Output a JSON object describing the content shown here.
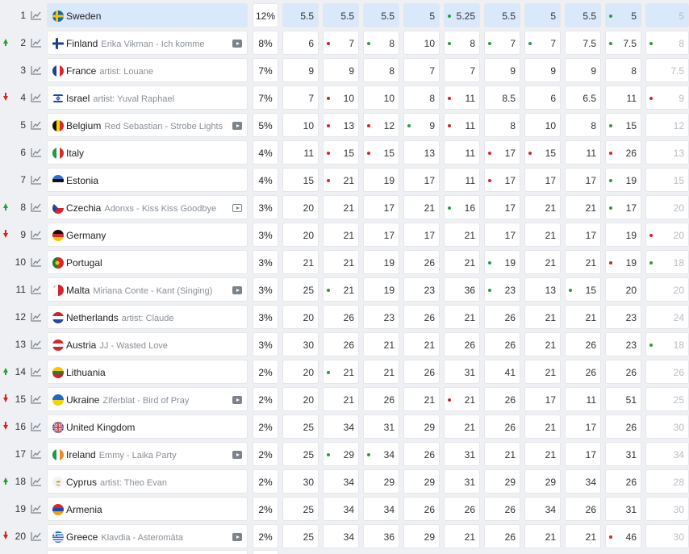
{
  "colors": {
    "up": "#2a9d3a",
    "down": "#d42626",
    "highlight": "#d9e8fb"
  },
  "rows": [
    {
      "rank": "1",
      "move": "",
      "country": "Sweden",
      "sub": "",
      "flag": "se",
      "video": "",
      "pct": "12%",
      "vals": [
        "5.5",
        "5.5",
        "5.5",
        "5",
        "5.25",
        "5.5",
        "5",
        "5.5",
        "5",
        "5"
      ],
      "dots": [
        "",
        "",
        "",
        "",
        "g",
        "",
        "",
        "",
        "g",
        ""
      ]
    },
    {
      "rank": "2",
      "move": "up",
      "country": "Finland",
      "sub": "Erika Vikman - Ich komme",
      "flag": "fi",
      "video": "filled",
      "pct": "8%",
      "vals": [
        "6",
        "7",
        "8",
        "10",
        "8",
        "7",
        "7",
        "7.5",
        "7.5",
        "8"
      ],
      "dots": [
        "",
        "r",
        "g",
        "",
        "g",
        "g",
        "g",
        "",
        "g",
        "g"
      ]
    },
    {
      "rank": "3",
      "move": "",
      "country": "France",
      "sub": "artist: Louane",
      "flag": "fr",
      "video": "",
      "pct": "7%",
      "vals": [
        "9",
        "9",
        "8",
        "7",
        "7",
        "9",
        "9",
        "9",
        "8",
        "7.5"
      ],
      "dots": [
        "",
        "",
        "",
        "",
        "",
        "",
        "",
        "",
        "",
        ""
      ]
    },
    {
      "rank": "4",
      "move": "down",
      "country": "Israel",
      "sub": "artist: Yuval Raphael",
      "flag": "il",
      "video": "",
      "pct": "7%",
      "vals": [
        "7",
        "10",
        "10",
        "8",
        "11",
        "8.5",
        "6",
        "6.5",
        "11",
        "9"
      ],
      "dots": [
        "",
        "r",
        "",
        "",
        "r",
        "",
        "",
        "",
        "",
        "r"
      ]
    },
    {
      "rank": "5",
      "move": "",
      "country": "Belgium",
      "sub": "Red Sebastian - Strobe Lights",
      "flag": "be",
      "video": "filled",
      "pct": "5%",
      "vals": [
        "10",
        "13",
        "12",
        "9",
        "11",
        "8",
        "10",
        "8",
        "15",
        "12"
      ],
      "dots": [
        "",
        "r",
        "r",
        "g",
        "r",
        "",
        "",
        "",
        "g",
        ""
      ]
    },
    {
      "rank": "6",
      "move": "",
      "country": "Italy",
      "sub": "",
      "flag": "it",
      "video": "",
      "pct": "4%",
      "vals": [
        "11",
        "15",
        "15",
        "13",
        "11",
        "17",
        "15",
        "11",
        "26",
        "13"
      ],
      "dots": [
        "",
        "r",
        "r",
        "",
        "",
        "r",
        "r",
        "",
        "r",
        ""
      ]
    },
    {
      "rank": "7",
      "move": "",
      "country": "Estonia",
      "sub": "",
      "flag": "ee",
      "video": "",
      "pct": "4%",
      "vals": [
        "15",
        "21",
        "19",
        "17",
        "11",
        "17",
        "17",
        "17",
        "19",
        "15"
      ],
      "dots": [
        "",
        "r",
        "",
        "",
        "",
        "r",
        "",
        "",
        "g",
        ""
      ]
    },
    {
      "rank": "8",
      "move": "up",
      "country": "Czechia",
      "sub": "Adonxs - Kiss Kiss Goodbye",
      "flag": "cz",
      "video": "outline",
      "pct": "3%",
      "vals": [
        "20",
        "21",
        "17",
        "21",
        "16",
        "17",
        "21",
        "21",
        "17",
        "20"
      ],
      "dots": [
        "",
        "",
        "",
        "",
        "g",
        "",
        "",
        "",
        "g",
        ""
      ]
    },
    {
      "rank": "9",
      "move": "down",
      "country": "Germany",
      "sub": "",
      "flag": "de",
      "video": "",
      "pct": "3%",
      "vals": [
        "20",
        "21",
        "17",
        "17",
        "21",
        "17",
        "21",
        "17",
        "19",
        "20"
      ],
      "dots": [
        "",
        "",
        "",
        "",
        "",
        "",
        "",
        "",
        "",
        "r"
      ]
    },
    {
      "rank": "10",
      "move": "",
      "country": "Portugal",
      "sub": "",
      "flag": "pt",
      "video": "",
      "pct": "3%",
      "vals": [
        "21",
        "21",
        "19",
        "26",
        "21",
        "19",
        "21",
        "21",
        "19",
        "18"
      ],
      "dots": [
        "",
        "",
        "",
        "",
        "",
        "g",
        "",
        "",
        "r",
        "g"
      ]
    },
    {
      "rank": "11",
      "move": "",
      "country": "Malta",
      "sub": "Miriana Conte - Kant (Singing)",
      "flag": "mt",
      "video": "filled",
      "pct": "3%",
      "vals": [
        "25",
        "21",
        "19",
        "23",
        "36",
        "23",
        "13",
        "15",
        "20",
        "20"
      ],
      "dots": [
        "",
        "g",
        "",
        "",
        "",
        "g",
        "",
        "g",
        "",
        ""
      ]
    },
    {
      "rank": "12",
      "move": "",
      "country": "Netherlands",
      "sub": "artist: Claude",
      "flag": "nl",
      "video": "",
      "pct": "3%",
      "vals": [
        "20",
        "26",
        "23",
        "26",
        "21",
        "26",
        "21",
        "21",
        "23",
        "24"
      ],
      "dots": [
        "",
        "",
        "",
        "",
        "",
        "",
        "",
        "",
        "",
        ""
      ]
    },
    {
      "rank": "13",
      "move": "",
      "country": "Austria",
      "sub": "JJ - Wasted Love",
      "flag": "at",
      "video": "",
      "pct": "3%",
      "vals": [
        "30",
        "26",
        "21",
        "21",
        "26",
        "26",
        "21",
        "26",
        "23",
        "18"
      ],
      "dots": [
        "",
        "",
        "",
        "",
        "",
        "",
        "",
        "",
        "",
        "g"
      ]
    },
    {
      "rank": "14",
      "move": "up",
      "country": "Lithuania",
      "sub": "",
      "flag": "lt",
      "video": "",
      "pct": "2%",
      "vals": [
        "20",
        "21",
        "21",
        "26",
        "31",
        "41",
        "21",
        "26",
        "26",
        "26"
      ],
      "dots": [
        "",
        "g",
        "",
        "",
        "",
        "",
        "",
        "",
        "",
        ""
      ]
    },
    {
      "rank": "15",
      "move": "down",
      "country": "Ukraine",
      "sub": "Ziferblat - Bird of Pray",
      "flag": "ua",
      "video": "filled",
      "pct": "2%",
      "vals": [
        "20",
        "21",
        "26",
        "21",
        "21",
        "26",
        "17",
        "11",
        "51",
        "25"
      ],
      "dots": [
        "",
        "",
        "",
        "",
        "r",
        "",
        "",
        "",
        "",
        ""
      ]
    },
    {
      "rank": "16",
      "move": "down",
      "country": "United Kingdom",
      "sub": "",
      "flag": "gb",
      "video": "",
      "pct": "2%",
      "vals": [
        "25",
        "34",
        "31",
        "29",
        "21",
        "26",
        "21",
        "17",
        "26",
        "30"
      ],
      "dots": [
        "",
        "",
        "",
        "",
        "",
        "",
        "",
        "",
        "",
        ""
      ]
    },
    {
      "rank": "17",
      "move": "",
      "country": "Ireland",
      "sub": "Emmy - Laika Party",
      "flag": "ie",
      "video": "filled",
      "pct": "2%",
      "vals": [
        "25",
        "29",
        "34",
        "26",
        "31",
        "21",
        "21",
        "17",
        "31",
        "34"
      ],
      "dots": [
        "",
        "g",
        "g",
        "",
        "",
        "",
        "",
        "",
        "",
        ""
      ]
    },
    {
      "rank": "18",
      "move": "up",
      "country": "Cyprus",
      "sub": "artist: Theo Evan",
      "flag": "cy",
      "video": "",
      "pct": "2%",
      "vals": [
        "30",
        "34",
        "29",
        "29",
        "31",
        "29",
        "29",
        "34",
        "26",
        "28"
      ],
      "dots": [
        "",
        "",
        "",
        "",
        "",
        "",
        "",
        "",
        "",
        ""
      ]
    },
    {
      "rank": "19",
      "move": "",
      "country": "Armenia",
      "sub": "",
      "flag": "am",
      "video": "",
      "pct": "2%",
      "vals": [
        "25",
        "34",
        "34",
        "26",
        "26",
        "26",
        "34",
        "26",
        "31",
        "30"
      ],
      "dots": [
        "",
        "",
        "",
        "",
        "",
        "",
        "",
        "",
        "",
        ""
      ]
    },
    {
      "rank": "20",
      "move": "down",
      "country": "Greece",
      "sub": "Klavdia - Asteromáta",
      "flag": "gr",
      "video": "filled",
      "pct": "2%",
      "vals": [
        "25",
        "34",
        "36",
        "29",
        "21",
        "26",
        "21",
        "21",
        "46",
        "30"
      ],
      "dots": [
        "",
        "",
        "",
        "",
        "",
        "",
        "",
        "",
        "r",
        ""
      ]
    }
  ]
}
